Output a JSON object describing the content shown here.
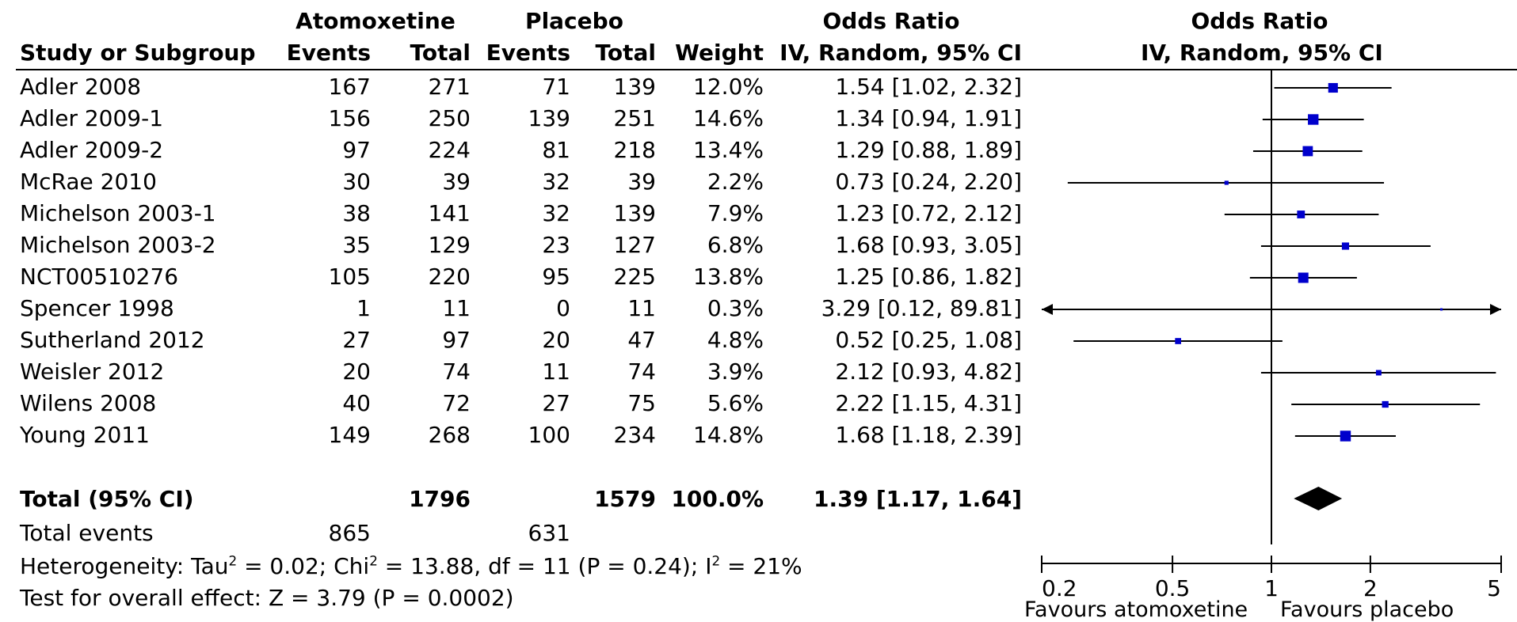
{
  "header": {
    "group1": "Atomoxetine",
    "group2": "Placebo",
    "or_title_table": "Odds Ratio",
    "or_title_plot": "Odds Ratio",
    "col_study": "Study or Subgroup",
    "col_events1": "Events",
    "col_total1": "Total",
    "col_events2": "Events",
    "col_total2": "Total",
    "col_weight": "Weight",
    "col_ci": "IV, Random, 95% CI",
    "plot_ci": "IV, Random, 95% CI"
  },
  "studies": [
    {
      "name": "Adler 2008",
      "e1": "167",
      "t1": "271",
      "e2": "71",
      "t2": "139",
      "weight": "12.0%",
      "ci": "1.54 [1.02, 2.32]"
    },
    {
      "name": "Adler 2009-1",
      "e1": "156",
      "t1": "250",
      "e2": "139",
      "t2": "251",
      "weight": "14.6%",
      "ci": "1.34 [0.94, 1.91]"
    },
    {
      "name": "Adler 2009-2",
      "e1": "97",
      "t1": "224",
      "e2": "81",
      "t2": "218",
      "weight": "13.4%",
      "ci": "1.29 [0.88, 1.89]"
    },
    {
      "name": "McRae 2010",
      "e1": "30",
      "t1": "39",
      "e2": "32",
      "t2": "39",
      "weight": "2.2%",
      "ci": "0.73 [0.24, 2.20]"
    },
    {
      "name": "Michelson 2003-1",
      "e1": "38",
      "t1": "141",
      "e2": "32",
      "t2": "139",
      "weight": "7.9%",
      "ci": "1.23 [0.72, 2.12]"
    },
    {
      "name": "Michelson 2003-2",
      "e1": "35",
      "t1": "129",
      "e2": "23",
      "t2": "127",
      "weight": "6.8%",
      "ci": "1.68 [0.93, 3.05]"
    },
    {
      "name": "NCT00510276",
      "e1": "105",
      "t1": "220",
      "e2": "95",
      "t2": "225",
      "weight": "13.8%",
      "ci": "1.25 [0.86, 1.82]"
    },
    {
      "name": "Spencer 1998",
      "e1": "1",
      "t1": "11",
      "e2": "0",
      "t2": "11",
      "weight": "0.3%",
      "ci": "3.29 [0.12, 89.81]"
    },
    {
      "name": "Sutherland 2012",
      "e1": "27",
      "t1": "97",
      "e2": "20",
      "t2": "47",
      "weight": "4.8%",
      "ci": "0.52 [0.25, 1.08]"
    },
    {
      "name": "Weisler 2012",
      "e1": "20",
      "t1": "74",
      "e2": "11",
      "t2": "74",
      "weight": "3.9%",
      "ci": "2.12 [0.93, 4.82]"
    },
    {
      "name": "Wilens 2008",
      "e1": "40",
      "t1": "72",
      "e2": "27",
      "t2": "75",
      "weight": "5.6%",
      "ci": "2.22 [1.15, 4.31]"
    },
    {
      "name": "Young 2011",
      "e1": "149",
      "t1": "268",
      "e2": "100",
      "t2": "234",
      "weight": "14.8%",
      "ci": "1.68 [1.18, 2.39]"
    }
  ],
  "total": {
    "name": "Total (95% CI)",
    "t1": "1796",
    "t2": "1579",
    "weight": "100.0%",
    "ci": "1.39 [1.17, 1.64]"
  },
  "events": {
    "label": "Total events",
    "e1": "865",
    "e2": "631"
  },
  "heterogeneity": {
    "p1": "Heterogeneity: Tau",
    "p2": "2",
    "p3": " = 0.02; Chi",
    "p4": "2",
    "p5": " = 13.88, df = 11 (P = 0.24); I",
    "p6": "2",
    "p7": " = 21%"
  },
  "overall_effect": "Test for overall effect: Z = 3.79 (P = 0.0002)",
  "plot_labels": {
    "favours_left": "Favours atomoxetine",
    "favours_right": "Favours placebo"
  },
  "colors": {
    "marker": "#0000cc",
    "line": "#000000",
    "diamond": "#000000"
  },
  "chart_data": {
    "type": "scatter",
    "title": "Odds Ratio",
    "subtitle": "IV, Random, 95% CI",
    "x_scale": "log",
    "xlim": [
      0.2,
      5
    ],
    "x_ticks": [
      0.2,
      0.5,
      1,
      2,
      5
    ],
    "x_tick_labels": [
      "0.2",
      "0.5",
      "1",
      "2",
      "5"
    ],
    "null_line": 1,
    "points": [
      {
        "study": "Adler 2008",
        "or": 1.54,
        "lo": 1.02,
        "hi": 2.32,
        "weight": 12.0
      },
      {
        "study": "Adler 2009-1",
        "or": 1.34,
        "lo": 0.94,
        "hi": 1.91,
        "weight": 14.6
      },
      {
        "study": "Adler 2009-2",
        "or": 1.29,
        "lo": 0.88,
        "hi": 1.89,
        "weight": 13.4
      },
      {
        "study": "McRae 2010",
        "or": 0.73,
        "lo": 0.24,
        "hi": 2.2,
        "weight": 2.2
      },
      {
        "study": "Michelson 2003-1",
        "or": 1.23,
        "lo": 0.72,
        "hi": 2.12,
        "weight": 7.9
      },
      {
        "study": "Michelson 2003-2",
        "or": 1.68,
        "lo": 0.93,
        "hi": 3.05,
        "weight": 6.8
      },
      {
        "study": "NCT00510276",
        "or": 1.25,
        "lo": 0.86,
        "hi": 1.82,
        "weight": 13.8
      },
      {
        "study": "Spencer 1998",
        "or": 3.29,
        "lo": 0.12,
        "hi": 89.81,
        "weight": 0.3
      },
      {
        "study": "Sutherland 2012",
        "or": 0.52,
        "lo": 0.25,
        "hi": 1.08,
        "weight": 4.8
      },
      {
        "study": "Weisler 2012",
        "or": 2.12,
        "lo": 0.93,
        "hi": 4.82,
        "weight": 3.9
      },
      {
        "study": "Wilens 2008",
        "or": 2.22,
        "lo": 1.15,
        "hi": 4.31,
        "weight": 5.6
      },
      {
        "study": "Young 2011",
        "or": 1.68,
        "lo": 1.18,
        "hi": 2.39,
        "weight": 14.8
      }
    ],
    "pooled": {
      "or": 1.39,
      "lo": 1.17,
      "hi": 1.64
    },
    "legend": []
  }
}
